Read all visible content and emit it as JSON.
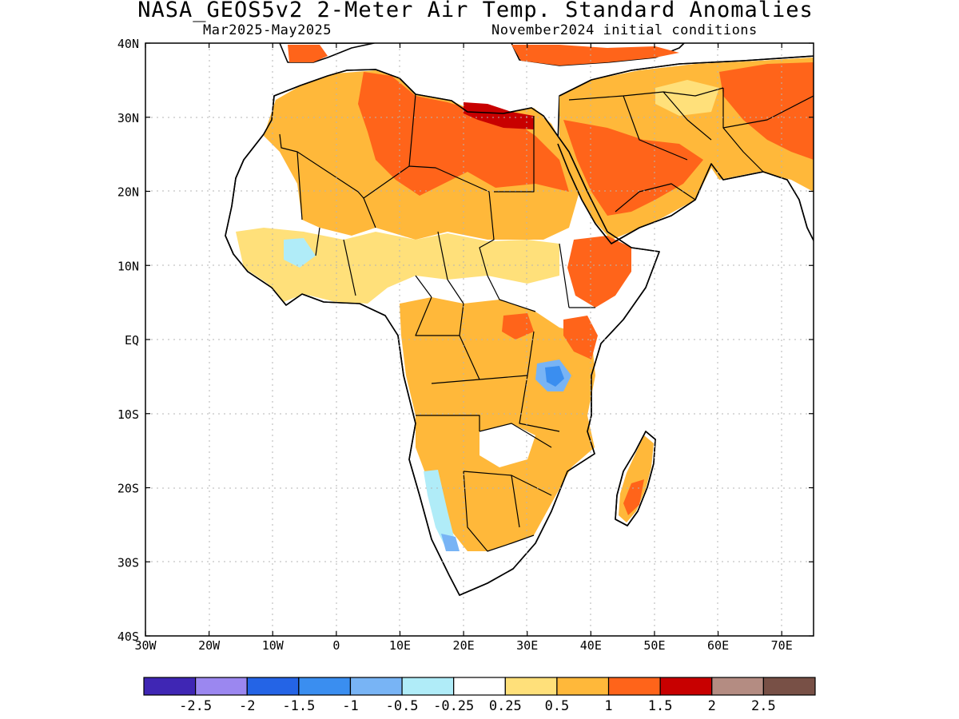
{
  "title": "NASA_GEOS5v2 2-Meter Air Temp. Standard Anomalies",
  "subtitle_left": "Mar2025-May2025",
  "subtitle_right": "November2024 initial conditions",
  "map": {
    "lon_range": [
      -30,
      75
    ],
    "lat_range": [
      -40,
      40
    ],
    "lon_ticks": [
      {
        "lon": -30,
        "label": "30W"
      },
      {
        "lon": -20,
        "label": "20W"
      },
      {
        "lon": -10,
        "label": "10W"
      },
      {
        "lon": 0,
        "label": "0"
      },
      {
        "lon": 10,
        "label": "10E"
      },
      {
        "lon": 20,
        "label": "20E"
      },
      {
        "lon": 30,
        "label": "30E"
      },
      {
        "lon": 40,
        "label": "40E"
      },
      {
        "lon": 50,
        "label": "50E"
      },
      {
        "lon": 60,
        "label": "60E"
      },
      {
        "lon": 70,
        "label": "70E"
      }
    ],
    "lat_ticks": [
      {
        "lat": 40,
        "label": "40N"
      },
      {
        "lat": 30,
        "label": "30N"
      },
      {
        "lat": 20,
        "label": "20N"
      },
      {
        "lat": 10,
        "label": "10N"
      },
      {
        "lat": 0,
        "label": "EQ"
      },
      {
        "lat": -10,
        "label": "10S"
      },
      {
        "lat": -20,
        "label": "20S"
      },
      {
        "lat": -30,
        "label": "30S"
      },
      {
        "lat": -40,
        "label": "40S"
      }
    ],
    "grid": true
  },
  "colorbar": {
    "colors": [
      "#3f26b4",
      "#9b87f0",
      "#2464e6",
      "#3a8ef0",
      "#78b4f5",
      "#b0ecf8",
      "#ffffff",
      "#ffe07a",
      "#ffb83a",
      "#ff641a",
      "#c80000",
      "#b48c82",
      "#785046"
    ],
    "labels": [
      "-2.5",
      "-2",
      "-1.5",
      "-1",
      "-0.5",
      "-0.25",
      "0.25",
      "0.5",
      "1",
      "1.5",
      "2",
      "2.5"
    ]
  }
}
